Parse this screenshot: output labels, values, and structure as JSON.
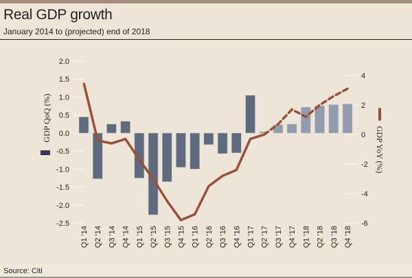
{
  "title": "Real GDP growth",
  "subtitle": "January 2014 to (projected) end of 2018",
  "source": "Source: Citi",
  "chart_data": {
    "type": "bar+line",
    "categories": [
      "Q1 '14",
      "Q2 '14",
      "Q3 '14",
      "Q4 '14",
      "Q1 '15",
      "Q2 '15",
      "Q3 '15",
      "Q4 '15",
      "Q1 '16",
      "Q2 '16",
      "Q3 '16",
      "Q4 '16",
      "Q1 '17",
      "Q2 '17",
      "Q3 '17",
      "Q4 '17",
      "Q1 '18",
      "Q2 '18",
      "Q3 '18",
      "Q4 '18"
    ],
    "series": [
      {
        "name": "GDP QoQ (%)",
        "type": "bar",
        "axis": "left",
        "values": [
          0.45,
          -1.27,
          0.25,
          0.33,
          -1.25,
          -2.27,
          -1.35,
          -0.95,
          -1.0,
          -0.32,
          -0.57,
          -0.55,
          1.05,
          0.04,
          0.23,
          0.25,
          0.72,
          0.76,
          0.79,
          0.81
        ],
        "projected_from": "Q2 '17",
        "color": "#5e6b7e",
        "projected_color": "#919dae"
      },
      {
        "name": "GDP YoY (%)",
        "type": "line",
        "axis": "right",
        "values": [
          3.5,
          -0.4,
          -0.6,
          -0.3,
          -1.7,
          -3.0,
          -4.5,
          -5.8,
          -5.4,
          -3.5,
          -2.8,
          -2.4,
          -0.3,
          0.0,
          0.7,
          1.7,
          1.2,
          2.0,
          2.6,
          3.1
        ],
        "projected_from": "Q2 '17",
        "projected_style": "dashed",
        "color": "#9c4f33"
      }
    ],
    "ylabel_left": "GDP QoQ (%)",
    "ylabel_right": "GDP YoY (%)",
    "ylim_left": [
      -2.5,
      2.0
    ],
    "yticks_left": [
      "2.0",
      "1.5",
      "1.0",
      "0.5",
      "0.0",
      "-0.5",
      "-1.0",
      "-1.5",
      "-2.0",
      "-2.5"
    ],
    "ylim_right": [
      -6,
      4
    ],
    "yticks_right": [
      "4",
      "2",
      "0",
      "-2",
      "-4",
      "-6"
    ],
    "grid": false
  }
}
